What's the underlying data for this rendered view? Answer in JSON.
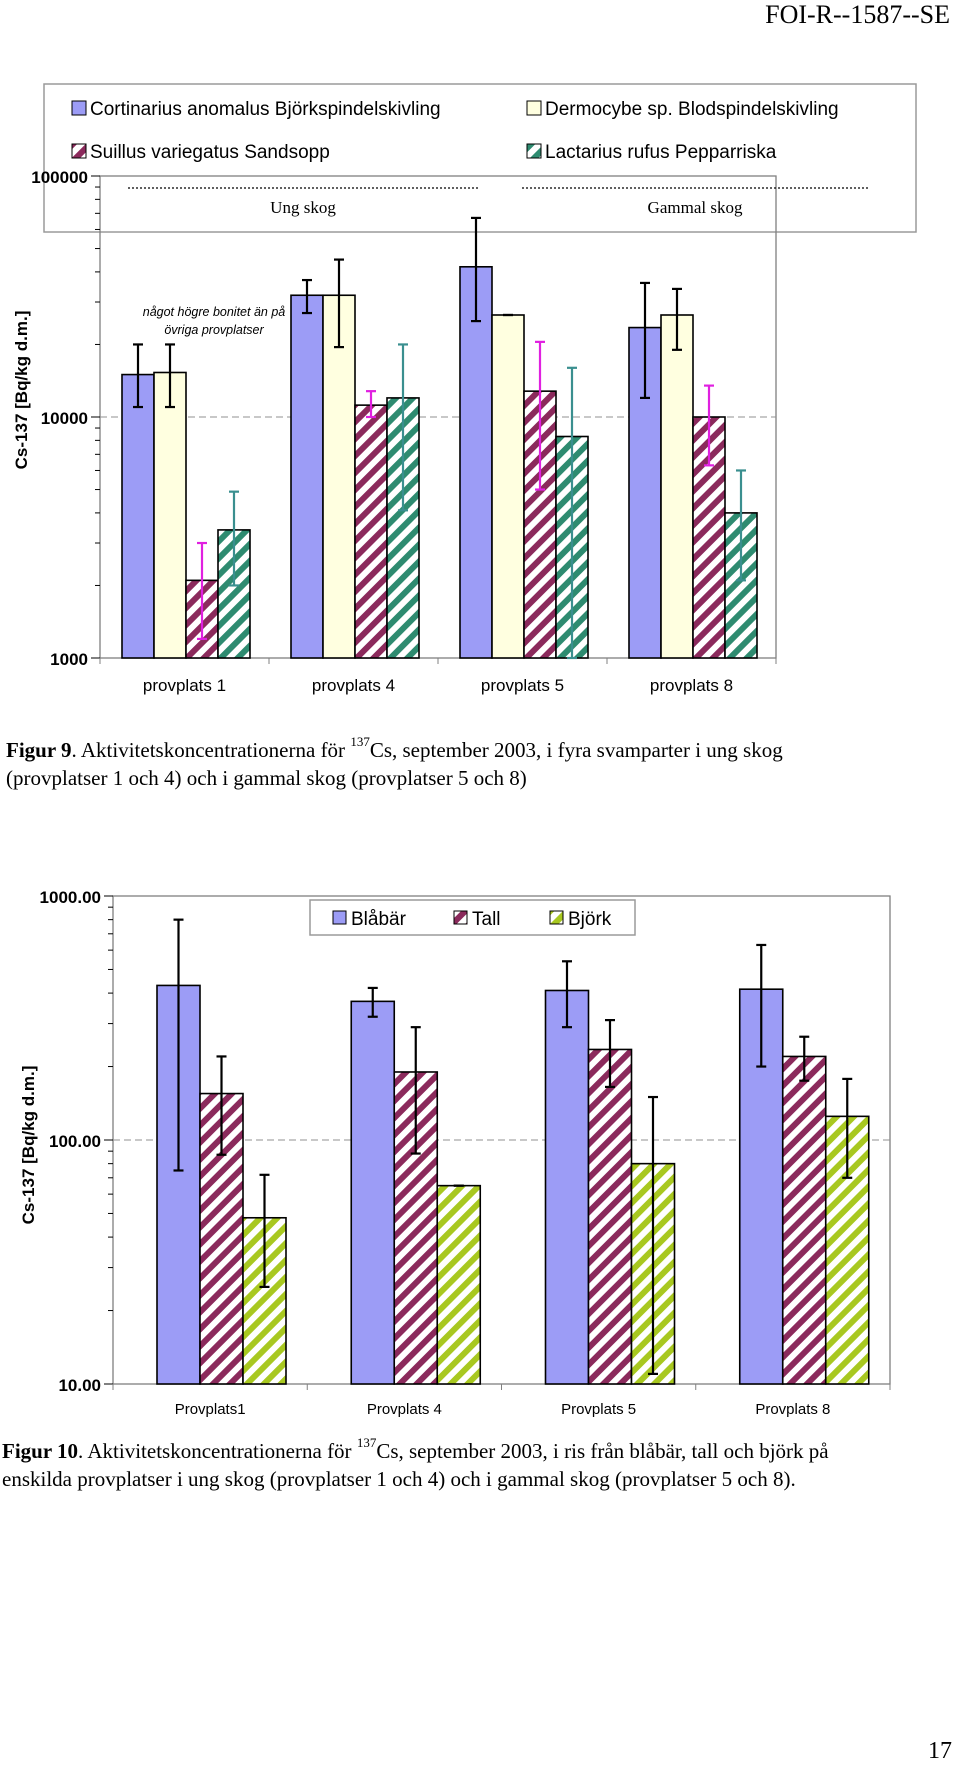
{
  "header": {
    "doc_id": "FOI-R--1587--SE"
  },
  "page_number": "17",
  "colors": {
    "blue": "#9c9cf6",
    "cream": "#ffffe0",
    "purple": "#8b2a5c",
    "teal": "#2e8b70",
    "lime": "#a8c820",
    "magenta": "#e020e0",
    "teal_err": "#3a8f8f"
  },
  "figure9": {
    "caption_label": "Figur 9",
    "caption_pre": ". Aktivitetskoncentrationerna för ",
    "caption_sup": "137",
    "caption_rest": "Cs, september 2003, i fyra svamparter i ung skog",
    "caption_line2": "(provplatser 1 och 4) och i gammal skog (provplatser 5 och 8)"
  },
  "figure10": {
    "caption_label": "Figur 10",
    "caption_pre": ". Aktivitetskoncentrationerna för ",
    "caption_sup": "137",
    "caption_rest": "Cs, september 2003, i ris från blåbär, tall och björk på",
    "caption_line2": "enskilda provplatser i ung skog (provplatser 1 och 4) och i gammal skog (provplatser 5 och 8)."
  },
  "chart_data": [
    {
      "type": "bar",
      "yscale": "log",
      "ylabel": "Cs-137 [Bq/kg d.m.]",
      "ylim": [
        1000,
        100000
      ],
      "yticks": [
        "1000",
        "10000",
        "100000"
      ],
      "categories": [
        "provplats 1",
        "provplats 4",
        "provplats 5",
        "provplats 8"
      ],
      "groups": [
        "Ung skog",
        "Gammal skog"
      ],
      "annotation": [
        "något högre bonitet än på",
        "övriga provplatser"
      ],
      "series": [
        {
          "name": "Cortinarius anomalus Björkspindelskivling",
          "fill": "solid",
          "color": "#9c9cf6",
          "err_color": "#000000",
          "values": [
            15000,
            32000,
            42000,
            23500
          ],
          "err_low": [
            11000,
            27000,
            25000,
            12000
          ],
          "err_high": [
            20000,
            37000,
            67000,
            36000
          ]
        },
        {
          "name": "Dermocybe sp. Blodspindelskivling",
          "fill": "solid",
          "color": "#ffffe0",
          "err_color": "#000000",
          "values": [
            15300,
            32000,
            26500,
            26500
          ],
          "err_low": [
            11000,
            19500,
            26500,
            19000
          ],
          "err_high": [
            20000,
            45000,
            26500,
            34000
          ]
        },
        {
          "name": "Suillus variegatus Sandsopp",
          "fill": "hatch",
          "color": "#8b2a5c",
          "err_color": "#e020e0",
          "values": [
            2100,
            11200,
            12800,
            10000
          ],
          "err_low": [
            1200,
            10000,
            5000,
            6300
          ],
          "err_high": [
            3000,
            12800,
            20500,
            13500
          ]
        },
        {
          "name": "Lactarius rufus Pepparriska",
          "fill": "hatch",
          "color": "#2e8b70",
          "err_color": "#3a8f8f",
          "values": [
            3400,
            12000,
            8300,
            4000
          ],
          "err_low": [
            2000,
            4100,
            1000,
            2100
          ],
          "err_high": [
            4900,
            20000,
            16000,
            6000
          ]
        }
      ]
    },
    {
      "type": "bar",
      "yscale": "log",
      "ylabel": "Cs-137 [Bq/kg d.m.]",
      "ylim": [
        10,
        1000
      ],
      "yticks": [
        "10.00",
        "100.00",
        "1000.00"
      ],
      "categories": [
        "Provplats1",
        "Provplats 4",
        "Provplats 5",
        "Provplats 8"
      ],
      "series": [
        {
          "name": "Blåbär",
          "fill": "solid",
          "color": "#9c9cf6",
          "values": [
            430,
            370,
            410,
            415
          ],
          "err_low": [
            75,
            320,
            290,
            200
          ],
          "err_high": [
            800,
            420,
            540,
            630
          ]
        },
        {
          "name": "Tall",
          "fill": "hatch",
          "color": "#8b2a5c",
          "values": [
            155,
            190,
            235,
            220
          ],
          "err_low": [
            87,
            88,
            165,
            175
          ],
          "err_high": [
            220,
            290,
            310,
            265
          ]
        },
        {
          "name": "Björk",
          "fill": "hatch",
          "color": "#a8c820",
          "values": [
            48,
            65,
            80,
            125
          ],
          "err_low": [
            25,
            65,
            11,
            70
          ],
          "err_high": [
            72,
            65,
            150,
            178
          ]
        }
      ]
    }
  ]
}
